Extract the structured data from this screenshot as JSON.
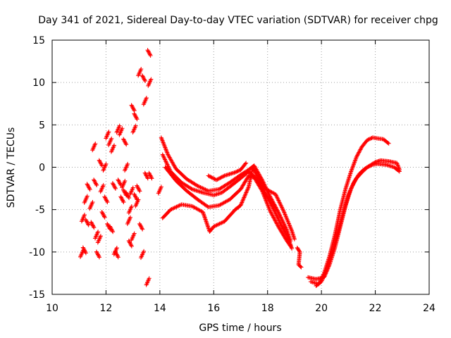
{
  "chart_data": {
    "type": "scatter",
    "title": "Day 341 of 2021, Sidereal Day-to-day VTEC variation (SDTVAR) for receiver chpg",
    "xlabel": "GPS time / hours",
    "ylabel": "SDTVAR / TECUs",
    "xlim": [
      10,
      24
    ],
    "ylim": [
      -15,
      15
    ],
    "xticks": [
      "10",
      "12",
      "14",
      "16",
      "18",
      "20",
      "22",
      "24"
    ],
    "yticks": [
      "-15",
      "-10",
      "-5",
      "0",
      "5",
      "10",
      "15"
    ],
    "grid": true,
    "marker": "plus",
    "color": "#ff0000",
    "series": [
      {
        "name": "trace-a",
        "values": [
          [
            14.05,
            3.5
          ],
          [
            14.3,
            1.5
          ],
          [
            14.6,
            -0.2
          ],
          [
            15.0,
            -1.4
          ],
          [
            15.4,
            -2.2
          ],
          [
            15.8,
            -2.8
          ],
          [
            16.2,
            -2.6
          ],
          [
            16.6,
            -1.8
          ],
          [
            17.0,
            -0.9
          ],
          [
            17.3,
            -0.3
          ],
          [
            17.5,
            0.2
          ],
          [
            17.8,
            -1.5
          ],
          [
            18.1,
            -3.5
          ],
          [
            18.4,
            -5.3
          ],
          [
            18.7,
            -7.3
          ],
          [
            18.85,
            -8.7
          ]
        ]
      },
      {
        "name": "trace-b",
        "values": [
          [
            14.1,
            1.5
          ],
          [
            14.4,
            -0.5
          ],
          [
            14.8,
            -1.8
          ],
          [
            15.2,
            -2.6
          ],
          [
            15.6,
            -3.0
          ],
          [
            16.0,
            -3.3
          ],
          [
            16.3,
            -3.0
          ],
          [
            16.6,
            -2.3
          ],
          [
            17.0,
            -1.3
          ],
          [
            17.3,
            -0.5
          ],
          [
            17.6,
            -1.4
          ],
          [
            17.9,
            -3.0
          ],
          [
            18.2,
            -4.8
          ],
          [
            18.5,
            -6.8
          ],
          [
            18.75,
            -8.2
          ],
          [
            18.9,
            -9.6
          ]
        ]
      },
      {
        "name": "trace-c",
        "values": [
          [
            14.2,
            0.0
          ],
          [
            14.6,
            -1.6
          ],
          [
            15.0,
            -2.8
          ],
          [
            15.4,
            -3.8
          ],
          [
            15.8,
            -4.7
          ],
          [
            16.2,
            -4.5
          ],
          [
            16.6,
            -3.8
          ],
          [
            17.0,
            -2.6
          ],
          [
            17.3,
            -1.0
          ],
          [
            17.5,
            -1.2
          ],
          [
            17.8,
            -2.8
          ],
          [
            18.1,
            -5.2
          ],
          [
            18.4,
            -7.0
          ],
          [
            18.7,
            -8.6
          ],
          [
            18.85,
            -9.3
          ]
        ]
      },
      {
        "name": "trace-d",
        "values": [
          [
            14.1,
            -6.0
          ],
          [
            14.4,
            -5.0
          ],
          [
            14.8,
            -4.4
          ],
          [
            15.2,
            -4.6
          ],
          [
            15.6,
            -5.3
          ],
          [
            15.85,
            -7.6
          ],
          [
            16.0,
            -7.0
          ],
          [
            16.4,
            -6.4
          ],
          [
            16.8,
            -5.0
          ],
          [
            17.0,
            -4.5
          ],
          [
            17.3,
            -2.3
          ],
          [
            17.45,
            0.0
          ],
          [
            17.6,
            -1.0
          ],
          [
            17.9,
            -2.5
          ],
          [
            18.3,
            -3.2
          ],
          [
            18.6,
            -5.2
          ],
          [
            18.9,
            -7.5
          ],
          [
            19.0,
            -8.5
          ]
        ]
      },
      {
        "name": "trace-e",
        "values": [
          [
            15.8,
            -1.0
          ],
          [
            16.1,
            -1.5
          ],
          [
            16.4,
            -1.0
          ],
          [
            16.8,
            -0.6
          ],
          [
            17.0,
            -0.3
          ],
          [
            17.2,
            0.5
          ]
        ]
      },
      {
        "name": "trace-f",
        "values": [
          [
            19.6,
            -13.5
          ],
          [
            19.9,
            -13.8
          ],
          [
            20.1,
            -12.5
          ],
          [
            20.3,
            -10.5
          ],
          [
            20.5,
            -8.0
          ],
          [
            20.7,
            -5.0
          ],
          [
            20.9,
            -2.5
          ],
          [
            21.1,
            -0.5
          ],
          [
            21.3,
            1.2
          ],
          [
            21.5,
            2.4
          ],
          [
            21.7,
            3.2
          ],
          [
            21.9,
            3.5
          ],
          [
            22.1,
            3.4
          ],
          [
            22.3,
            3.3
          ],
          [
            22.5,
            2.8
          ]
        ]
      },
      {
        "name": "trace-g",
        "values": [
          [
            19.8,
            -14.0
          ],
          [
            20.0,
            -13.5
          ],
          [
            20.2,
            -12.0
          ],
          [
            20.4,
            -10.0
          ],
          [
            20.6,
            -7.8
          ],
          [
            20.8,
            -5.5
          ],
          [
            21.0,
            -3.3
          ],
          [
            21.2,
            -1.8
          ],
          [
            21.4,
            -0.8
          ],
          [
            21.6,
            -0.2
          ],
          [
            21.8,
            0.2
          ],
          [
            22.0,
            0.6
          ],
          [
            22.2,
            0.8
          ],
          [
            22.5,
            0.7
          ],
          [
            22.8,
            0.5
          ],
          [
            22.9,
            -0.3
          ]
        ]
      },
      {
        "name": "trace-h",
        "values": [
          [
            19.5,
            -13.0
          ],
          [
            19.8,
            -13.2
          ],
          [
            20.1,
            -13.0
          ],
          [
            20.3,
            -11.5
          ],
          [
            20.5,
            -9.5
          ],
          [
            20.7,
            -7.0
          ],
          [
            20.9,
            -4.5
          ],
          [
            21.1,
            -2.5
          ],
          [
            21.3,
            -1.3
          ],
          [
            21.5,
            -0.6
          ],
          [
            21.7,
            0.0
          ],
          [
            21.9,
            0.3
          ],
          [
            22.1,
            0.4
          ],
          [
            22.4,
            0.3
          ],
          [
            22.7,
            0.0
          ],
          [
            22.9,
            -0.5
          ]
        ]
      },
      {
        "name": "trace-i",
        "values": [
          [
            19.1,
            -9.5
          ],
          [
            19.2,
            -10.0
          ],
          [
            19.15,
            -11.5
          ],
          [
            19.25,
            -11.8
          ]
        ]
      },
      {
        "name": "cluster-early",
        "values": [
          [
            11.1,
            -10.2
          ],
          [
            11.2,
            -9.8
          ],
          [
            11.15,
            -6.0
          ],
          [
            11.3,
            -6.5
          ],
          [
            11.25,
            -3.8
          ],
          [
            11.35,
            -2.3
          ],
          [
            11.45,
            -4.5
          ],
          [
            11.5,
            -6.8
          ],
          [
            11.55,
            2.4
          ],
          [
            11.6,
            -1.8
          ],
          [
            11.65,
            -8.0
          ],
          [
            11.7,
            -10.3
          ],
          [
            11.75,
            -8.5
          ],
          [
            11.8,
            0.5
          ],
          [
            11.85,
            -2.5
          ],
          [
            11.9,
            -5.6
          ],
          [
            11.95,
            0.0
          ],
          [
            12.0,
            -3.8
          ],
          [
            12.05,
            3.8
          ],
          [
            12.1,
            -7.0
          ],
          [
            12.15,
            3.0
          ],
          [
            12.2,
            -7.3
          ],
          [
            12.25,
            2.2
          ],
          [
            12.3,
            -2.2
          ],
          [
            12.35,
            -9.9
          ],
          [
            12.4,
            -10.3
          ],
          [
            12.45,
            4.5
          ],
          [
            12.5,
            -1.8
          ],
          [
            12.55,
            4.2
          ],
          [
            12.6,
            -3.8
          ],
          [
            12.65,
            -2.0
          ],
          [
            12.7,
            3.0
          ],
          [
            12.75,
            0.0
          ],
          [
            12.8,
            -3.3
          ],
          [
            12.85,
            -6.3
          ],
          [
            12.9,
            -9.0
          ],
          [
            12.95,
            -2.8
          ],
          [
            13.0,
            7.0
          ],
          [
            13.05,
            4.5
          ],
          [
            13.1,
            -3.5
          ],
          [
            13.15,
            -4.2
          ],
          [
            13.2,
            -2.5
          ],
          [
            13.25,
            11.2
          ],
          [
            13.3,
            -7.0
          ],
          [
            13.35,
            -10.3
          ],
          [
            13.4,
            10.5
          ],
          [
            13.45,
            7.8
          ],
          [
            13.5,
            -1.0
          ],
          [
            13.55,
            -13.5
          ],
          [
            13.6,
            13.5
          ],
          [
            13.62,
            10.0
          ],
          [
            13.65,
            -1.0
          ],
          [
            13.0,
            -8.2
          ],
          [
            13.1,
            6.0
          ],
          [
            12.9,
            -5.0
          ],
          [
            12.7,
            -3.0
          ],
          [
            14.0,
            -2.7
          ]
        ]
      }
    ]
  }
}
